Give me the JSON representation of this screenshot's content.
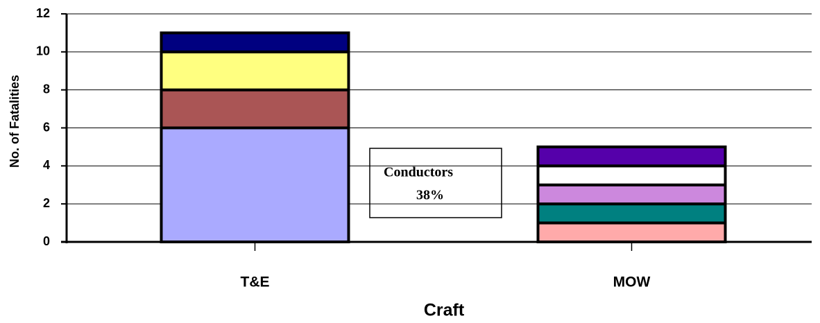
{
  "chart_data": {
    "type": "stacked_bar",
    "categories": [
      "T&E",
      "MOW"
    ],
    "series": [
      {
        "color": "#aaaaff",
        "values": [
          6,
          null
        ]
      },
      {
        "color": "#aa5555",
        "values": [
          2,
          null
        ]
      },
      {
        "color": "#ffff80",
        "values": [
          2,
          null
        ]
      },
      {
        "color": "#000080",
        "values": [
          1,
          null
        ]
      },
      {
        "color": "#ffaaaa",
        "values": [
          null,
          1
        ]
      },
      {
        "color": "#008080",
        "values": [
          null,
          1
        ]
      },
      {
        "color": "#cc88dd",
        "values": [
          null,
          1
        ]
      },
      {
        "color": "#ffffff",
        "values": [
          null,
          1
        ]
      },
      {
        "color": "#5500aa",
        "values": [
          null,
          1
        ]
      }
    ],
    "ylim": [
      0,
      12
    ],
    "yticks": [
      0,
      2,
      4,
      6,
      8,
      10,
      12
    ],
    "grid": true,
    "ylabel": "No. of Fatalities",
    "xlabel": "Craft",
    "annotation": [
      "Conductors",
      "38%"
    ]
  }
}
